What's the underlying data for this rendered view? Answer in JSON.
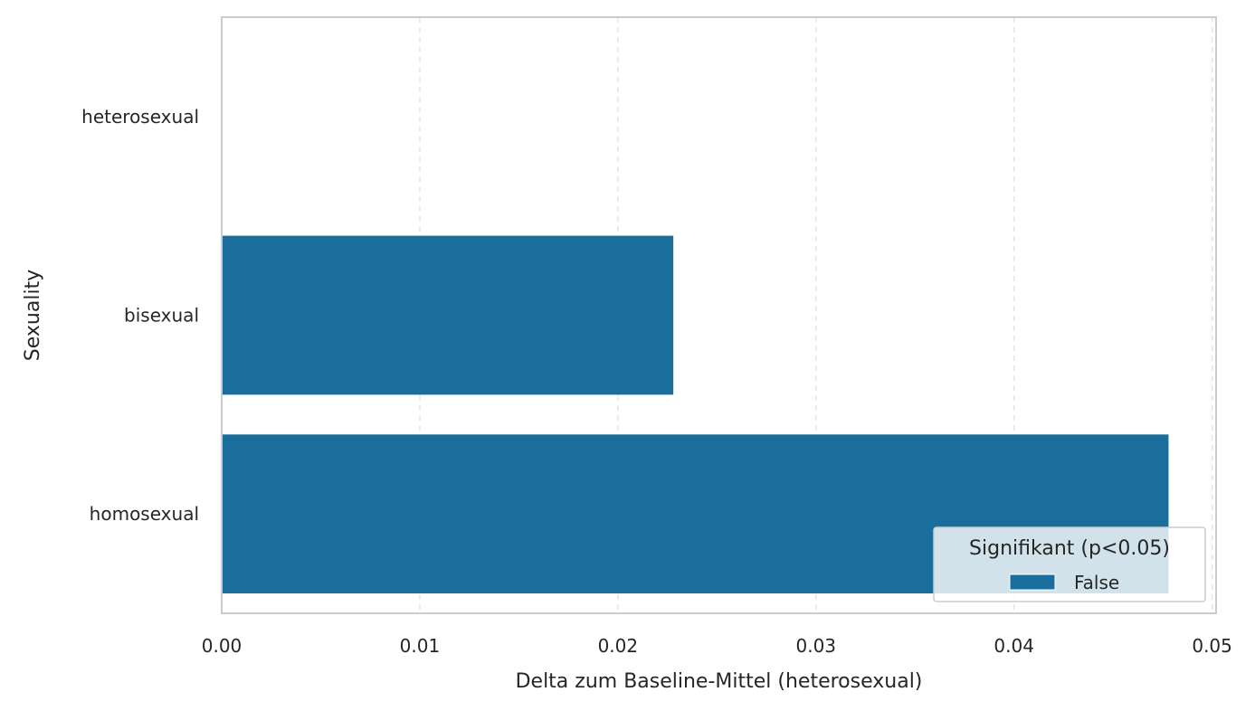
{
  "chart_data": {
    "type": "bar",
    "orientation": "horizontal",
    "categories": [
      "heterosexual",
      "bisexual",
      "homosexual"
    ],
    "series": [
      {
        "name": "False",
        "values": [
          0.0,
          0.0228,
          0.0478
        ],
        "color": "#1a6e9c"
      }
    ],
    "xlabel": "Delta zum Baseline-Mittel (heterosexual)",
    "ylabel": "Sexuality",
    "xlim": [
      0.0,
      0.0502
    ],
    "xticks": [
      "0.00",
      "0.01",
      "0.02",
      "0.03",
      "0.04",
      "0.05"
    ],
    "grid": "x-dashed",
    "legend": {
      "title": "Signifikant (p<0.05)",
      "entries": [
        "False"
      ],
      "placement": "lower-right"
    }
  }
}
